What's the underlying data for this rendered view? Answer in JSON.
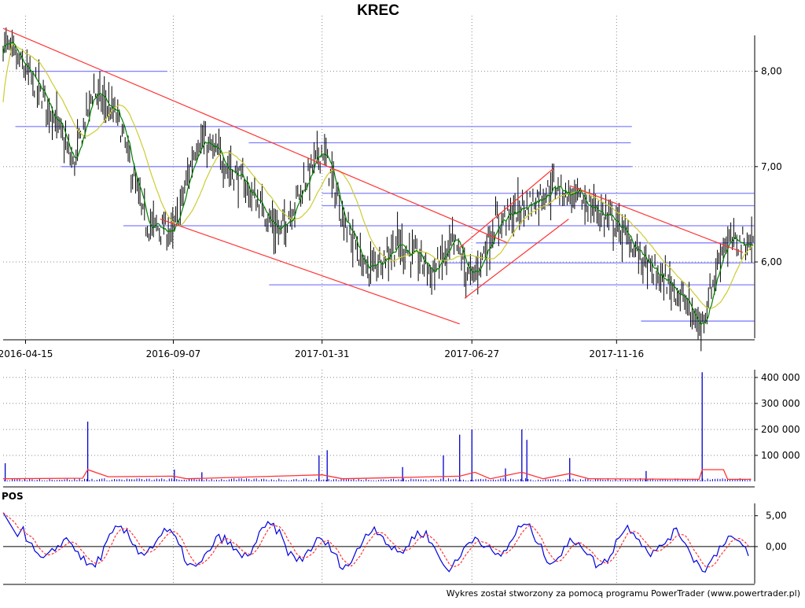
{
  "title": "KREC",
  "footer": "Wykres został stworzony za pomocą programu PowerTrader (www.powertrader.pl)",
  "colors": {
    "bars": "#000000",
    "ma_short": "#008000",
    "ma_long": "#cccc33",
    "support_lines": "#8080ff",
    "trend_lines": "#ff3333",
    "volume": "#0000cc",
    "volume_avg": "#ff3333",
    "pos_line": "#0000dd",
    "pos_signal": "#ff3333",
    "grid": "#888888"
  },
  "chart_data": [
    {
      "type": "line",
      "name": "price-panel",
      "title": "KREC",
      "x_ticks": [
        "2016-04-15",
        "2016-09-07",
        "2017-01-31",
        "2017-06-27",
        "2017-11-16"
      ],
      "y_ticks": [
        "8,00",
        "7,00",
        "6,00"
      ],
      "ylim": [
        5.2,
        8.5
      ],
      "grid": true,
      "anchor_closes": [
        {
          "date": "2016-03-24",
          "close": 8.3
        },
        {
          "date": "2016-04-15",
          "close": 8.0
        },
        {
          "date": "2016-05-10",
          "close": 7.6
        },
        {
          "date": "2016-06-01",
          "close": 7.0
        },
        {
          "date": "2016-06-20",
          "close": 7.8
        },
        {
          "date": "2016-07-15",
          "close": 7.5
        },
        {
          "date": "2016-08-10",
          "close": 6.4
        },
        {
          "date": "2016-09-07",
          "close": 6.3
        },
        {
          "date": "2016-10-01",
          "close": 7.3
        },
        {
          "date": "2016-11-01",
          "close": 7.0
        },
        {
          "date": "2016-12-01",
          "close": 6.6
        },
        {
          "date": "2016-12-20",
          "close": 6.3
        },
        {
          "date": "2017-01-31",
          "close": 7.2
        },
        {
          "date": "2017-02-20",
          "close": 6.5
        },
        {
          "date": "2017-03-15",
          "close": 5.9
        },
        {
          "date": "2017-04-15",
          "close": 6.2
        },
        {
          "date": "2017-05-20",
          "close": 5.9
        },
        {
          "date": "2017-06-10",
          "close": 6.2
        },
        {
          "date": "2017-06-27",
          "close": 5.8
        },
        {
          "date": "2017-07-20",
          "close": 6.4
        },
        {
          "date": "2017-08-20",
          "close": 6.6
        },
        {
          "date": "2017-09-15",
          "close": 6.8
        },
        {
          "date": "2017-10-20",
          "close": 6.6
        },
        {
          "date": "2017-11-16",
          "close": 6.4
        },
        {
          "date": "2017-12-20",
          "close": 5.9
        },
        {
          "date": "2018-01-15",
          "close": 5.7
        },
        {
          "date": "2018-02-06",
          "close": 5.3
        },
        {
          "date": "2018-03-01",
          "close": 6.2
        },
        {
          "date": "2018-03-28",
          "close": 6.2
        }
      ],
      "horizontal_lines": [
        {
          "y": 8.0,
          "from": "2016-04-15",
          "to": "2016-09-01"
        },
        {
          "y": 7.42,
          "from": "2016-04-05",
          "to": "2017-12-01"
        },
        {
          "y": 7.25,
          "from": "2016-11-20",
          "to": "2017-11-30"
        },
        {
          "y": 7.0,
          "from": "2016-05-20",
          "to": "2017-12-01"
        },
        {
          "y": 6.72,
          "from": "2017-01-31",
          "to": "2018-03-31"
        },
        {
          "y": 6.59,
          "from": "2017-01-31",
          "to": "2018-03-31"
        },
        {
          "y": 6.38,
          "from": "2016-07-20",
          "to": "2018-03-31"
        },
        {
          "y": 6.2,
          "from": "2017-07-01",
          "to": "2018-03-31"
        },
        {
          "y": 5.99,
          "from": "2017-06-01",
          "to": "2018-03-31"
        },
        {
          "y": 5.76,
          "from": "2016-12-10",
          "to": "2018-03-31"
        },
        {
          "y": 5.38,
          "from": "2017-12-10",
          "to": "2018-03-31"
        }
      ],
      "trend_lines": [
        {
          "from": {
            "date": "2016-03-24",
            "value": 8.45
          },
          "to": {
            "date": "2017-08-01",
            "value": 6.2
          }
        },
        {
          "from": {
            "date": "2016-08-25",
            "value": 6.45
          },
          "to": {
            "date": "2017-06-15",
            "value": 5.35
          }
        },
        {
          "from": {
            "date": "2017-06-15",
            "value": 6.15
          },
          "to": {
            "date": "2017-09-15",
            "value": 6.98
          }
        },
        {
          "from": {
            "date": "2017-06-20",
            "value": 5.62
          },
          "to": {
            "date": "2017-09-30",
            "value": 6.45
          }
        },
        {
          "from": {
            "date": "2017-10-01",
            "value": 6.8
          },
          "to": {
            "date": "2018-03-20",
            "value": 6.1
          }
        }
      ]
    },
    {
      "type": "bar",
      "name": "volume-panel",
      "y_ticks": [
        "400 000",
        "300 000",
        "200 000",
        "100 000"
      ],
      "ylim": [
        0,
        430000
      ],
      "spikes": [
        {
          "date": "2016-03-26",
          "value": 70000
        },
        {
          "date": "2016-06-15",
          "value": 230000
        },
        {
          "date": "2016-09-08",
          "value": 45000
        },
        {
          "date": "2016-10-05",
          "value": 35000
        },
        {
          "date": "2017-01-28",
          "value": 100000
        },
        {
          "date": "2017-02-05",
          "value": 120000
        },
        {
          "date": "2017-04-20",
          "value": 55000
        },
        {
          "date": "2017-05-30",
          "value": 100000
        },
        {
          "date": "2017-06-15",
          "value": 180000
        },
        {
          "date": "2017-06-27",
          "value": 200000
        },
        {
          "date": "2017-07-30",
          "value": 50000
        },
        {
          "date": "2017-08-15",
          "value": 200000
        },
        {
          "date": "2017-08-20",
          "value": 160000
        },
        {
          "date": "2017-10-01",
          "value": 90000
        },
        {
          "date": "2017-12-15",
          "value": 40000
        },
        {
          "date": "2018-02-08",
          "value": 420000
        }
      ],
      "average_line": [
        {
          "date": "2016-03-24",
          "value": 10000
        },
        {
          "date": "2016-06-10",
          "value": 12000
        },
        {
          "date": "2016-06-15",
          "value": 45000
        },
        {
          "date": "2016-07-05",
          "value": 18000
        },
        {
          "date": "2016-09-07",
          "value": 20000
        },
        {
          "date": "2016-09-20",
          "value": 10000
        },
        {
          "date": "2017-01-31",
          "value": 25000
        },
        {
          "date": "2017-02-20",
          "value": 10000
        },
        {
          "date": "2017-06-15",
          "value": 20000
        },
        {
          "date": "2017-06-30",
          "value": 35000
        },
        {
          "date": "2017-07-15",
          "value": 10000
        },
        {
          "date": "2017-08-15",
          "value": 35000
        },
        {
          "date": "2017-09-05",
          "value": 10000
        },
        {
          "date": "2017-10-01",
          "value": 30000
        },
        {
          "date": "2017-10-20",
          "value": 10000
        },
        {
          "date": "2018-02-05",
          "value": 8000
        },
        {
          "date": "2018-02-08",
          "value": 45000
        },
        {
          "date": "2018-03-01",
          "value": 45000
        },
        {
          "date": "2018-03-05",
          "value": 8000
        },
        {
          "date": "2018-03-28",
          "value": 8000
        }
      ]
    },
    {
      "type": "line",
      "name": "pos-panel",
      "title": "POS",
      "y_ticks": [
        "5,00",
        "0,00"
      ],
      "ylim": [
        -6,
        7
      ],
      "zero_line": true
    }
  ]
}
